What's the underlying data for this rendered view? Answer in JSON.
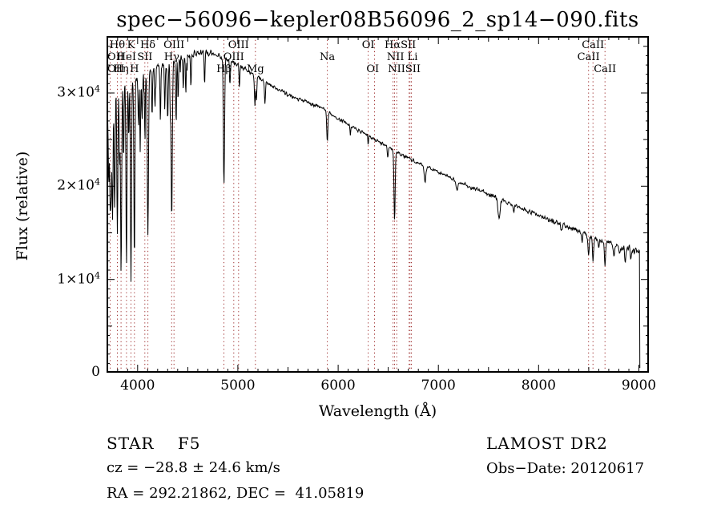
{
  "title": "spec−56096−kepler08B56096_2_sp14−090.fits",
  "chart_data": {
    "type": "line",
    "title": "spec−56096−kepler08B56096_2_sp14−090.fits",
    "xlabel": "Wavelength (Å)",
    "ylabel": "Flux (relative)",
    "xlim": [
      3690,
      9100
    ],
    "ylim": [
      0,
      36100
    ],
    "x_data_range": [
      3690,
      9010
    ],
    "grid": false,
    "series_color": "#000000",
    "marker_line_color": "#a03232",
    "x_ticks": [
      {
        "v": 4000,
        "label": "4000"
      },
      {
        "v": 5000,
        "label": "5000"
      },
      {
        "v": 6000,
        "label": "6000"
      },
      {
        "v": 7000,
        "label": "7000"
      },
      {
        "v": 8000,
        "label": "8000"
      },
      {
        "v": 9000,
        "label": "9000"
      }
    ],
    "x_minor_step": 100,
    "y_ticks": [
      {
        "v": 0,
        "label": "0"
      },
      {
        "v": 10000,
        "label": "1×10^4"
      },
      {
        "v": 20000,
        "label": "2×10^4"
      },
      {
        "v": 30000,
        "label": "3×10^4"
      }
    ],
    "y_minor_step": 1000,
    "spectral_line_markers": [
      3727,
      3798,
      3835,
      3889,
      3934,
      3968,
      4072,
      4102,
      4340,
      4363,
      4861,
      4959,
      5007,
      5175,
      5892,
      6300,
      6363,
      6548,
      6563,
      6584,
      6708,
      6717,
      6731,
      8498,
      8542,
      8662
    ],
    "line_labels": {
      "row1": [
        {
          "text": "Hθ",
          "wavelength": 3798
        },
        {
          "text": "K",
          "wavelength": 3934
        },
        {
          "text": "Hδ",
          "wavelength": 4102
        },
        {
          "text": "OIII",
          "wavelength": 4363
        },
        {
          "text": "OIII",
          "wavelength": 5007
        },
        {
          "text": "OI",
          "wavelength": 6300
        },
        {
          "text": "HαSII",
          "wavelength": 6620
        },
        {
          "text": "CaII",
          "wavelength": 8542
        }
      ],
      "row2": [
        {
          "text": "OII",
          "wavelength": 3727
        },
        {
          "text": "HeI",
          "wavelength": 3889
        },
        {
          "text": "SII",
          "wavelength": 4072
        },
        {
          "text": "Hγ",
          "wavelength": 4340
        },
        {
          "text": "OIII",
          "wavelength": 4959
        },
        {
          "text": "Na",
          "wavelength": 5892
        },
        {
          "text": "NII Li",
          "wavelength": 6640
        },
        {
          "text": "CaII",
          "wavelength": 8498
        }
      ],
      "row3": [
        {
          "text": "OII",
          "wavelength": 3729
        },
        {
          "text": "Hη",
          "wavelength": 3835
        },
        {
          "text": "H",
          "wavelength": 3968
        },
        {
          "text": "Hβ",
          "wavelength": 4861
        },
        {
          "text": "Mg",
          "wavelength": 5175
        },
        {
          "text": "OI",
          "wavelength": 6345
        },
        {
          "text": "NIISII",
          "wavelength": 6660
        },
        {
          "text": "CaII",
          "wavelength": 8662
        }
      ]
    },
    "continuum_points": [
      [
        3690,
        24500
      ],
      [
        3705,
        28500
      ],
      [
        3730,
        29600
      ],
      [
        3760,
        30200
      ],
      [
        3800,
        30300
      ],
      [
        3850,
        30600
      ],
      [
        3900,
        31000
      ],
      [
        3950,
        31200
      ],
      [
        4000,
        31600
      ],
      [
        4100,
        32200
      ],
      [
        4200,
        32700
      ],
      [
        4300,
        33200
      ],
      [
        4400,
        33600
      ],
      [
        4500,
        34000
      ],
      [
        4600,
        34400
      ],
      [
        4700,
        34400
      ],
      [
        4800,
        34000
      ],
      [
        4900,
        33500
      ],
      [
        5000,
        33000
      ],
      [
        5100,
        32400
      ],
      [
        5200,
        31700
      ],
      [
        5300,
        31000
      ],
      [
        5400,
        30400
      ],
      [
        5500,
        29800
      ],
      [
        5600,
        29400
      ],
      [
        5700,
        29000
      ],
      [
        5800,
        28600
      ],
      [
        5900,
        28000
      ],
      [
        6000,
        27200
      ],
      [
        6100,
        26600
      ],
      [
        6200,
        26000
      ],
      [
        6300,
        25400
      ],
      [
        6400,
        24800
      ],
      [
        6500,
        24200
      ],
      [
        6600,
        23600
      ],
      [
        6700,
        23000
      ],
      [
        6800,
        22500
      ],
      [
        6900,
        22000
      ],
      [
        7000,
        21500
      ],
      [
        7100,
        21000
      ],
      [
        7200,
        20500
      ],
      [
        7300,
        20000
      ],
      [
        7400,
        19600
      ],
      [
        7500,
        19200
      ],
      [
        7600,
        18700
      ],
      [
        7700,
        18200
      ],
      [
        7800,
        17700
      ],
      [
        7900,
        17300
      ],
      [
        8000,
        16900
      ],
      [
        8100,
        16400
      ],
      [
        8200,
        16000
      ],
      [
        8300,
        15600
      ],
      [
        8400,
        15200
      ],
      [
        8500,
        14700
      ],
      [
        8600,
        14300
      ],
      [
        8700,
        13900
      ],
      [
        8800,
        13600
      ],
      [
        8900,
        13300
      ],
      [
        9000,
        13000
      ],
      [
        9006,
        12800
      ],
      [
        9010,
        400
      ]
    ],
    "absorption_lines": [
      [
        3712,
        0.3,
        5
      ],
      [
        3727,
        0.4,
        5
      ],
      [
        3737,
        0.3,
        4
      ],
      [
        3750,
        0.45,
        5
      ],
      [
        3771,
        0.42,
        5
      ],
      [
        3798,
        0.5,
        5
      ],
      [
        3820,
        0.28,
        4
      ],
      [
        3835,
        0.66,
        5
      ],
      [
        3860,
        0.25,
        4
      ],
      [
        3889,
        0.62,
        5
      ],
      [
        3912,
        0.2,
        4
      ],
      [
        3934,
        0.7,
        5
      ],
      [
        3968,
        0.62,
        5
      ],
      [
        4009,
        0.18,
        4
      ],
      [
        4026,
        0.25,
        4
      ],
      [
        4045,
        0.15,
        4
      ],
      [
        4072,
        0.2,
        4
      ],
      [
        4102,
        0.55,
        6
      ],
      [
        4144,
        0.15,
        4
      ],
      [
        4173,
        0.12,
        4
      ],
      [
        4227,
        0.18,
        4
      ],
      [
        4271,
        0.15,
        4
      ],
      [
        4300,
        0.18,
        5
      ],
      [
        4325,
        0.15,
        4
      ],
      [
        4340,
        0.5,
        6
      ],
      [
        4383,
        0.18,
        4
      ],
      [
        4404,
        0.14,
        4
      ],
      [
        4455,
        0.1,
        4
      ],
      [
        4481,
        0.12,
        4
      ],
      [
        4531,
        0.1,
        4
      ],
      [
        4668,
        0.1,
        4
      ],
      [
        4861,
        0.4,
        6
      ],
      [
        4920,
        0.08,
        4
      ],
      [
        5015,
        0.07,
        4
      ],
      [
        5170,
        0.1,
        5
      ],
      [
        5185,
        0.08,
        4
      ],
      [
        5270,
        0.07,
        5
      ],
      [
        5892,
        0.115,
        6
      ],
      [
        6122,
        0.04,
        4
      ],
      [
        6300,
        0.035,
        4
      ],
      [
        6495,
        0.045,
        5
      ],
      [
        6563,
        0.31,
        6
      ],
      [
        6867,
        0.075,
        8
      ],
      [
        7186,
        0.05,
        10
      ],
      [
        7605,
        0.11,
        10
      ],
      [
        7750,
        0.04,
        6
      ],
      [
        8227,
        0.05,
        6
      ],
      [
        8434,
        0.05,
        5
      ],
      [
        8498,
        0.13,
        6
      ],
      [
        8542,
        0.18,
        6
      ],
      [
        8598,
        0.06,
        5
      ],
      [
        8662,
        0.17,
        6
      ],
      [
        8750,
        0.09,
        6
      ],
      [
        8806,
        0.07,
        5
      ],
      [
        8865,
        0.11,
        6
      ],
      [
        8920,
        0.09,
        5
      ]
    ],
    "noise_profile": [
      [
        3690,
        900
      ],
      [
        4000,
        720
      ],
      [
        4400,
        620
      ],
      [
        4800,
        520
      ],
      [
        5200,
        400
      ],
      [
        5600,
        310
      ],
      [
        6000,
        280
      ],
      [
        6600,
        280
      ],
      [
        7200,
        330
      ],
      [
        8000,
        420
      ],
      [
        8700,
        560
      ],
      [
        9010,
        620
      ]
    ]
  },
  "annotations": {
    "class_label": "STAR    F5",
    "survey": "LAMOST DR2",
    "cz": "cz = −28.8 ± 24.6 km/s",
    "obs_date": "Obs−Date: 20120617",
    "coords": "RA = 292.21862, DEC =  41.05819"
  }
}
